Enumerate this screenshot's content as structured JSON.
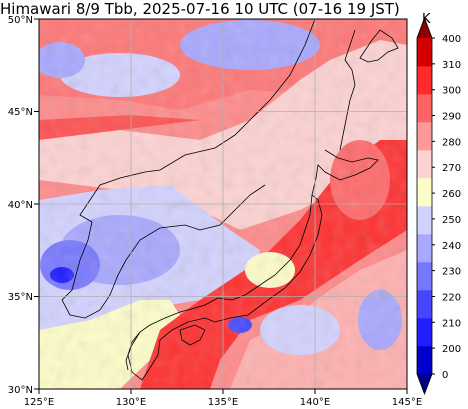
{
  "title": "Himawari 8/9 Tbb, 2025-07-16 10 UTC (07-16 19 JST)",
  "map": {
    "lon_range": [
      125,
      145
    ],
    "lat_range": [
      30,
      50
    ],
    "lat_ticks": [
      "30°N",
      "35°N",
      "40°N",
      "45°N",
      "50°N"
    ],
    "lon_ticks": [
      "125°E",
      "130°E",
      "135°E",
      "140°E",
      "145°E"
    ],
    "gridlines": true,
    "coastline_color": "#000000",
    "grid_color": "#b0b0b0"
  },
  "colorbar": {
    "unit": "K",
    "levels": [
      "0",
      "200",
      "210",
      "220",
      "230",
      "240",
      "250",
      "260",
      "270",
      "280",
      "290",
      "300",
      "310",
      "400"
    ],
    "colors": [
      "#00008b",
      "#0000cd",
      "#1e1eff",
      "#4646ff",
      "#7878ff",
      "#a8a8ff",
      "#d2d2ff",
      "#fdfdc8",
      "#fdd2d2",
      "#ff9a9a",
      "#ff6464",
      "#ff2a2a",
      "#d40000",
      "#8b0000"
    ]
  }
}
